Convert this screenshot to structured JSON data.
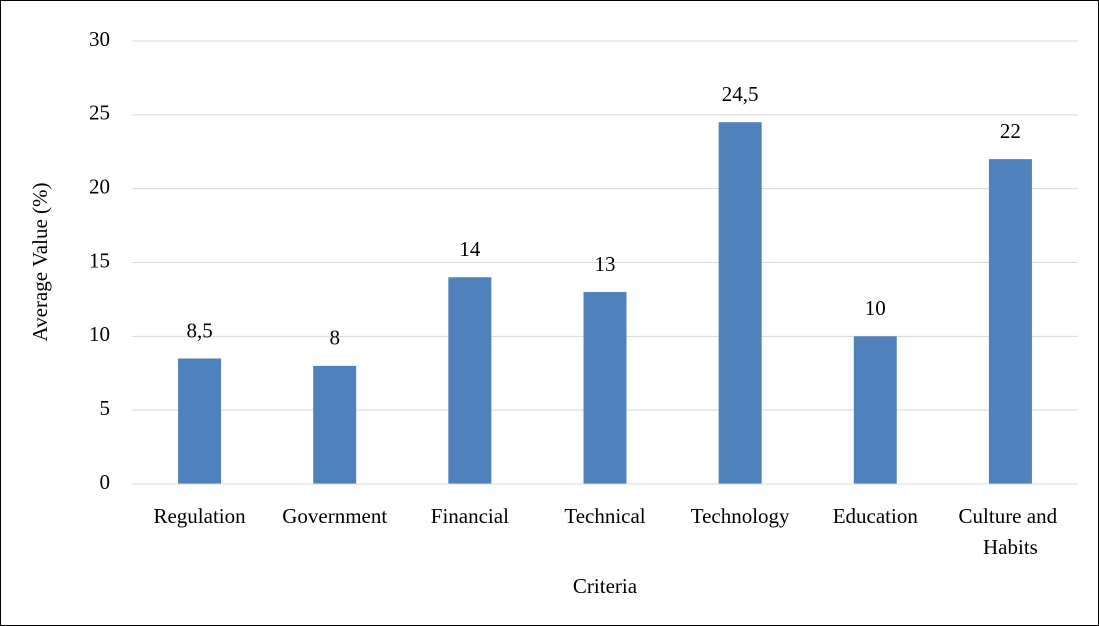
{
  "chart_data": {
    "type": "bar",
    "categories": [
      "Regulation",
      "Government",
      "Financial",
      "Technical",
      "Technology",
      "Education",
      "Culture and Habits"
    ],
    "values": [
      8.5,
      8,
      14,
      13,
      24.5,
      10,
      22
    ],
    "value_labels": [
      "8,5",
      "8",
      "14",
      "13",
      "24,5",
      "10",
      "22"
    ],
    "color": "#4f81bd",
    "ylim": [
      0,
      30
    ],
    "yticks": [
      0,
      5,
      10,
      15,
      20,
      25,
      30
    ],
    "grid": true,
    "x_label": "Criteria",
    "y_label": "Average Value (%)"
  }
}
